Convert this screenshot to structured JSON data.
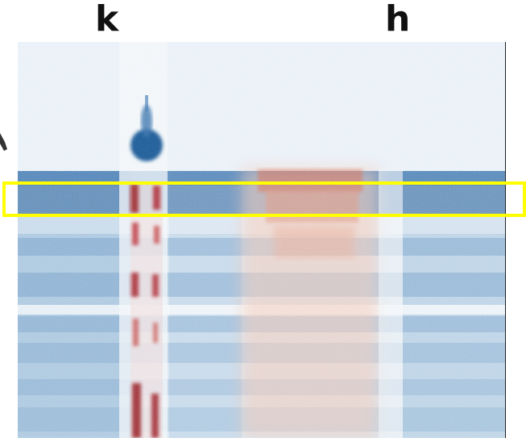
{
  "labels": {
    "left": "k",
    "right": "h"
  },
  "colors": {
    "negative": "#2f6aa8",
    "positive": "#b2182b",
    "neutral": "#f4f7fa",
    "highlight": "#ffff00"
  }
}
